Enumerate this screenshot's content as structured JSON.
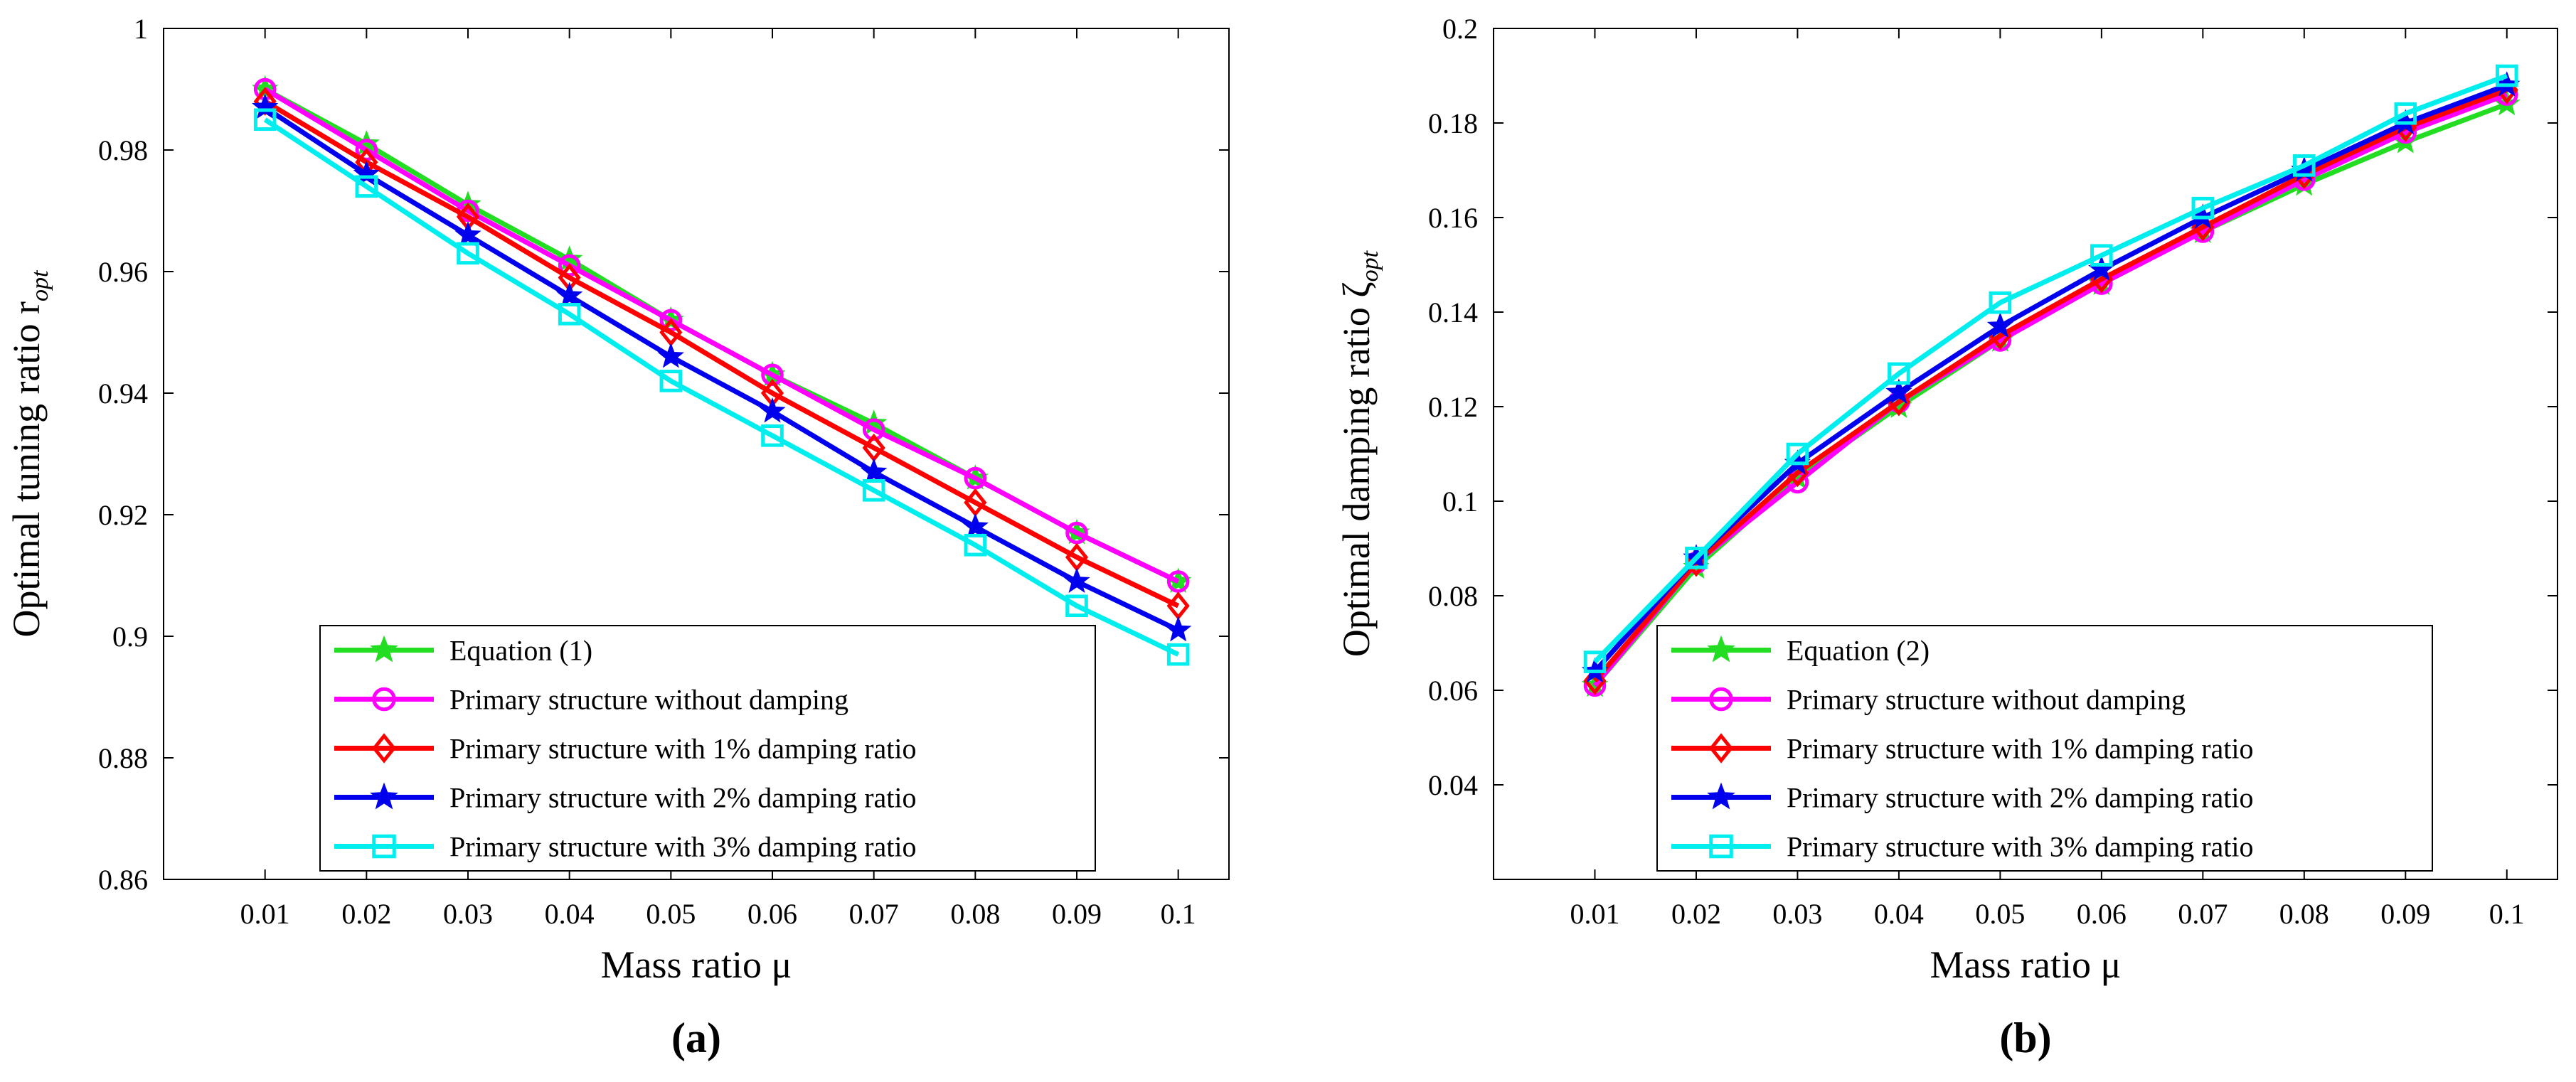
{
  "chart_data": [
    {
      "type": "line",
      "panel_label": "(a)",
      "xlabel": "Mass ratio μ",
      "ylabel": "Optimal tuning ratio r",
      "ylabel_sub": "opt",
      "x": [
        0.01,
        0.02,
        0.03,
        0.04,
        0.05,
        0.06,
        0.07,
        0.08,
        0.09,
        0.1
      ],
      "x_tick_labels": [
        "0.01",
        "0.02",
        "0.03",
        "0.04",
        "0.05",
        "0.06",
        "0.07",
        "0.08",
        "0.09",
        "0.1"
      ],
      "xlim": [
        0.0,
        0.105
      ],
      "y_ticks": [
        0.86,
        0.88,
        0.9,
        0.92,
        0.94,
        0.96,
        0.98,
        1.0
      ],
      "y_tick_labels": [
        "0.86",
        "0.88",
        "0.9",
        "0.92",
        "0.94",
        "0.96",
        "0.98",
        "1"
      ],
      "ylim": [
        0.86,
        1.0
      ],
      "grid": false,
      "legend_position": "bottom-center",
      "series": [
        {
          "name": "Equation (1)",
          "color": "#22dd22",
          "marker": "star",
          "values": [
            0.99,
            0.981,
            0.971,
            0.962,
            0.952,
            0.943,
            0.935,
            0.926,
            0.917,
            0.909
          ]
        },
        {
          "name": "Primary structure without damping",
          "color": "#ff00ff",
          "marker": "circle",
          "values": [
            0.99,
            0.98,
            0.97,
            0.961,
            0.952,
            0.943,
            0.934,
            0.926,
            0.917,
            0.909
          ]
        },
        {
          "name": "Primary structure with 1% damping ratio",
          "color": "#ff0000",
          "marker": "diamond",
          "values": [
            0.988,
            0.978,
            0.969,
            0.959,
            0.95,
            0.94,
            0.931,
            0.922,
            0.913,
            0.905
          ]
        },
        {
          "name": "Primary structure with 2% damping ratio",
          "color": "#0000ee",
          "marker": "star",
          "values": [
            0.987,
            0.976,
            0.966,
            0.956,
            0.946,
            0.937,
            0.927,
            0.918,
            0.909,
            0.901
          ]
        },
        {
          "name": "Primary structure with 3% damping ratio",
          "color": "#00eeee",
          "marker": "square",
          "values": [
            0.985,
            0.974,
            0.963,
            0.953,
            0.942,
            0.933,
            0.924,
            0.915,
            0.905,
            0.897
          ]
        }
      ]
    },
    {
      "type": "line",
      "panel_label": "(b)",
      "xlabel": "Mass ratio μ",
      "ylabel": "Optimal damping ratio ζ",
      "ylabel_sub": "opt",
      "x": [
        0.01,
        0.02,
        0.03,
        0.04,
        0.05,
        0.06,
        0.07,
        0.08,
        0.09,
        0.1
      ],
      "x_tick_labels": [
        "0.01",
        "0.02",
        "0.03",
        "0.04",
        "0.05",
        "0.06",
        "0.07",
        "0.08",
        "0.09",
        "0.1"
      ],
      "xlim": [
        0.0,
        0.105
      ],
      "y_ticks": [
        0.02,
        0.04,
        0.06,
        0.08,
        0.1,
        0.12,
        0.14,
        0.16,
        0.18,
        0.2
      ],
      "y_tick_labels": [
        "",
        "0.04",
        "0.06",
        "0.08",
        "0.1",
        "0.12",
        "0.14",
        "0.16",
        "0.18",
        "0.2"
      ],
      "ylim": [
        0.02,
        0.2
      ],
      "grid": false,
      "legend_position": "bottom-right",
      "series": [
        {
          "name": "Equation (2)",
          "color": "#22dd22",
          "marker": "star",
          "values": [
            0.061,
            0.086,
            0.105,
            0.12,
            0.134,
            0.146,
            0.157,
            0.167,
            0.176,
            0.184
          ]
        },
        {
          "name": "Primary structure without damping",
          "color": "#ff00ff",
          "marker": "circle",
          "values": [
            0.061,
            0.087,
            0.104,
            0.121,
            0.134,
            0.146,
            0.157,
            0.168,
            0.178,
            0.186
          ]
        },
        {
          "name": "Primary structure with 1% damping ratio",
          "color": "#ff0000",
          "marker": "diamond",
          "values": [
            0.062,
            0.087,
            0.106,
            0.121,
            0.135,
            0.147,
            0.158,
            0.169,
            0.179,
            0.187
          ]
        },
        {
          "name": "Primary structure with 2% damping ratio",
          "color": "#0000ee",
          "marker": "star",
          "values": [
            0.064,
            0.088,
            0.108,
            0.123,
            0.137,
            0.149,
            0.16,
            0.17,
            0.18,
            0.188
          ]
        },
        {
          "name": "Primary structure with 3% damping ratio",
          "color": "#00eeee",
          "marker": "square",
          "values": [
            0.066,
            0.088,
            0.11,
            0.127,
            0.142,
            0.152,
            0.162,
            0.171,
            0.182,
            0.19
          ]
        }
      ]
    }
  ]
}
